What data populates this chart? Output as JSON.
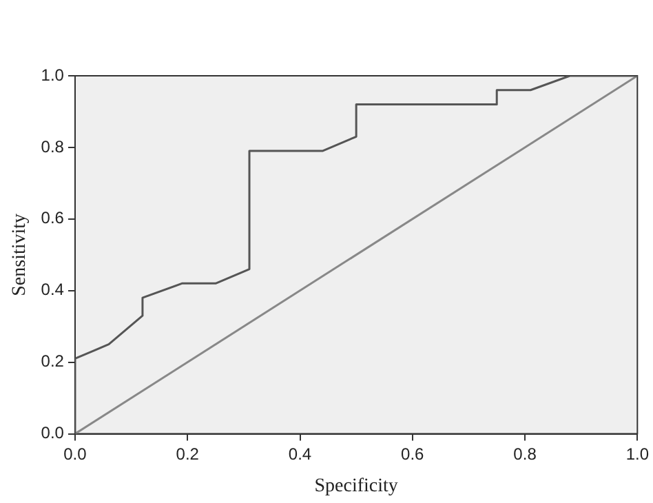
{
  "chart_data": {
    "type": "line",
    "xlabel": "Specificity",
    "ylabel": "Sensitivity",
    "xlim": [
      0,
      1
    ],
    "ylim": [
      0,
      1
    ],
    "xticks": [
      {
        "value": 0,
        "label": "0.0"
      },
      0.2,
      0.4,
      0.6,
      0.8,
      {
        "value": 1,
        "label": "1.0"
      }
    ],
    "yticks": [
      {
        "value": 0,
        "label": "0.0"
      },
      0.2,
      0.4,
      0.6,
      0.8,
      {
        "value": 1,
        "label": "1.0"
      }
    ],
    "grid": false,
    "legend": false,
    "marker": "none",
    "line_style": "solid",
    "series": [
      {
        "color": "#555555",
        "x": [
          0,
          0,
          0.06,
          0.12,
          0.12,
          0.19,
          0.25,
          0.31,
          0.31,
          0.44,
          0.5,
          0.5,
          0.75,
          0.75,
          0.81,
          0.88,
          1
        ],
        "values": [
          0,
          0.21,
          0.25,
          0.33,
          0.38,
          0.42,
          0.42,
          0.46,
          0.79,
          0.79,
          0.83,
          0.92,
          0.92,
          0.96,
          0.96,
          1,
          1
        ]
      },
      {
        "color": "#888888",
        "x": [
          0,
          1
        ],
        "values": [
          0,
          1
        ]
      }
    ]
  }
}
